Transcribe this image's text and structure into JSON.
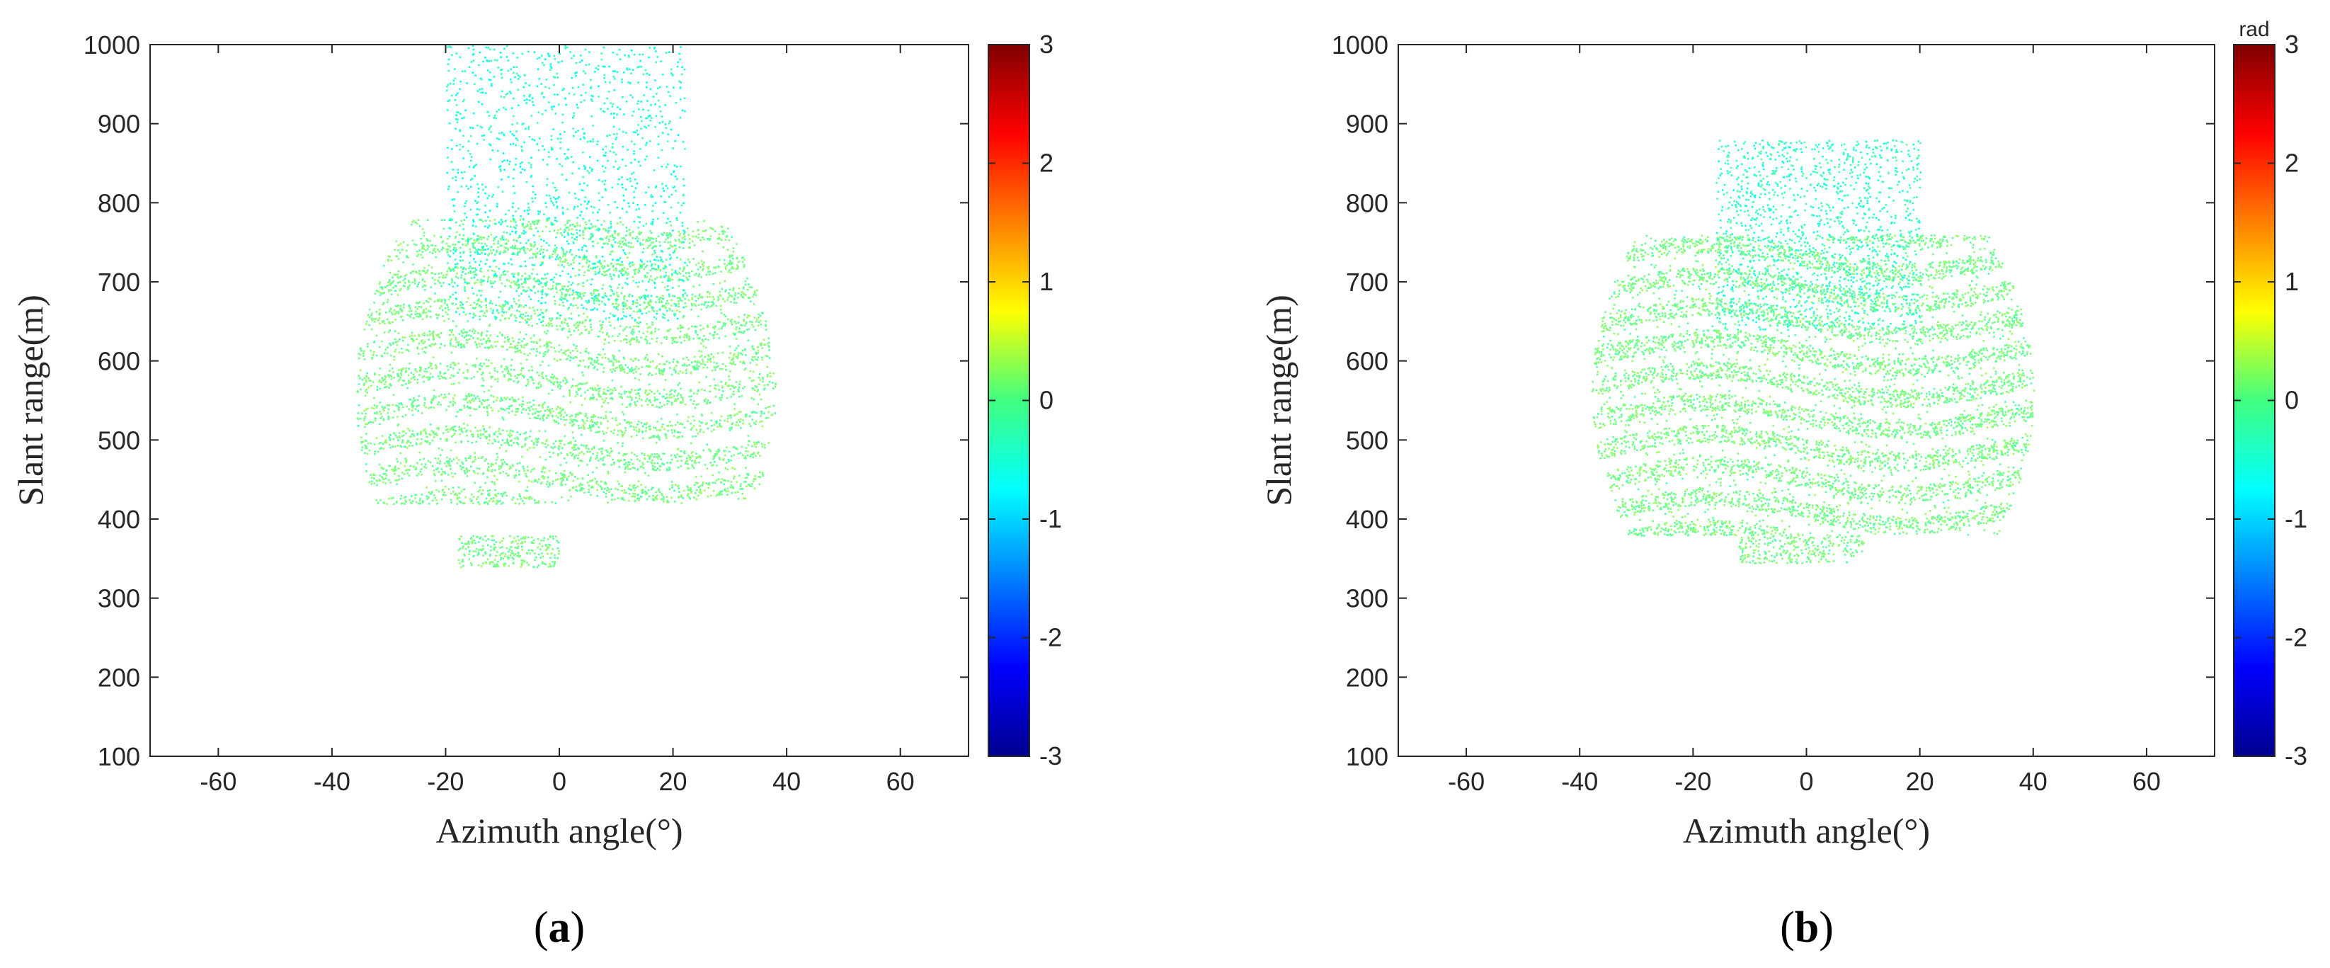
{
  "chart_data": [
    {
      "type": "scatter",
      "panel_label": "a",
      "title": "",
      "xlabel": "Azimuth angle(°)",
      "ylabel": "Slant range(m)",
      "xlim": [
        -72,
        72
      ],
      "ylim": [
        100,
        1000
      ],
      "xticks": [
        "-60",
        "-40",
        "-20",
        "0",
        "20",
        "40",
        "60"
      ],
      "yticks": [
        "100",
        "200",
        "300",
        "400",
        "500",
        "600",
        "700",
        "800",
        "900",
        "1000"
      ],
      "grid": false,
      "colorbar": {
        "label": "",
        "range": [
          -3,
          3
        ],
        "ticks": [
          "-3",
          "-2",
          "-1",
          "0",
          "1",
          "2",
          "3"
        ],
        "colormap": "jet"
      },
      "series": [
        {
          "values_description_phase_rad": 0,
          "clusters": [
            {
              "x": [
                -36,
                38
              ],
              "y": [
                420,
                780
              ],
              "phase": -0.05
            },
            {
              "x": [
                -20,
                22
              ],
              "y": [
                650,
                1000
              ],
              "phase": -0.55
            },
            {
              "x": [
                -18,
                0
              ],
              "y": [
                340,
                380
              ],
              "phase": -0.05
            }
          ]
        }
      ]
    },
    {
      "type": "scatter",
      "panel_label": "b",
      "title": "",
      "xlabel": "Azimuth angle(°)",
      "ylabel": "Slant range(m)",
      "xlim": [
        -72,
        72
      ],
      "ylim": [
        100,
        1000
      ],
      "xticks": [
        "-60",
        "-40",
        "-20",
        "0",
        "20",
        "40",
        "60"
      ],
      "yticks": [
        "100",
        "200",
        "300",
        "400",
        "500",
        "600",
        "700",
        "800",
        "900",
        "1000"
      ],
      "grid": false,
      "colorbar": {
        "label": "rad",
        "range": [
          -3,
          3
        ],
        "ticks": [
          "-3",
          "-2",
          "-1",
          "0",
          "1",
          "2",
          "3"
        ],
        "colormap": "jet"
      },
      "series": [
        {
          "values_description_phase_rad": 0,
          "clusters": [
            {
              "x": [
                -38,
                40
              ],
              "y": [
                380,
                760
              ],
              "phase": -0.05
            },
            {
              "x": [
                -16,
                20
              ],
              "y": [
                640,
                880
              ],
              "phase": -0.45
            },
            {
              "x": [
                -12,
                10
              ],
              "y": [
                345,
                380
              ],
              "phase": -0.05
            }
          ]
        }
      ]
    }
  ]
}
